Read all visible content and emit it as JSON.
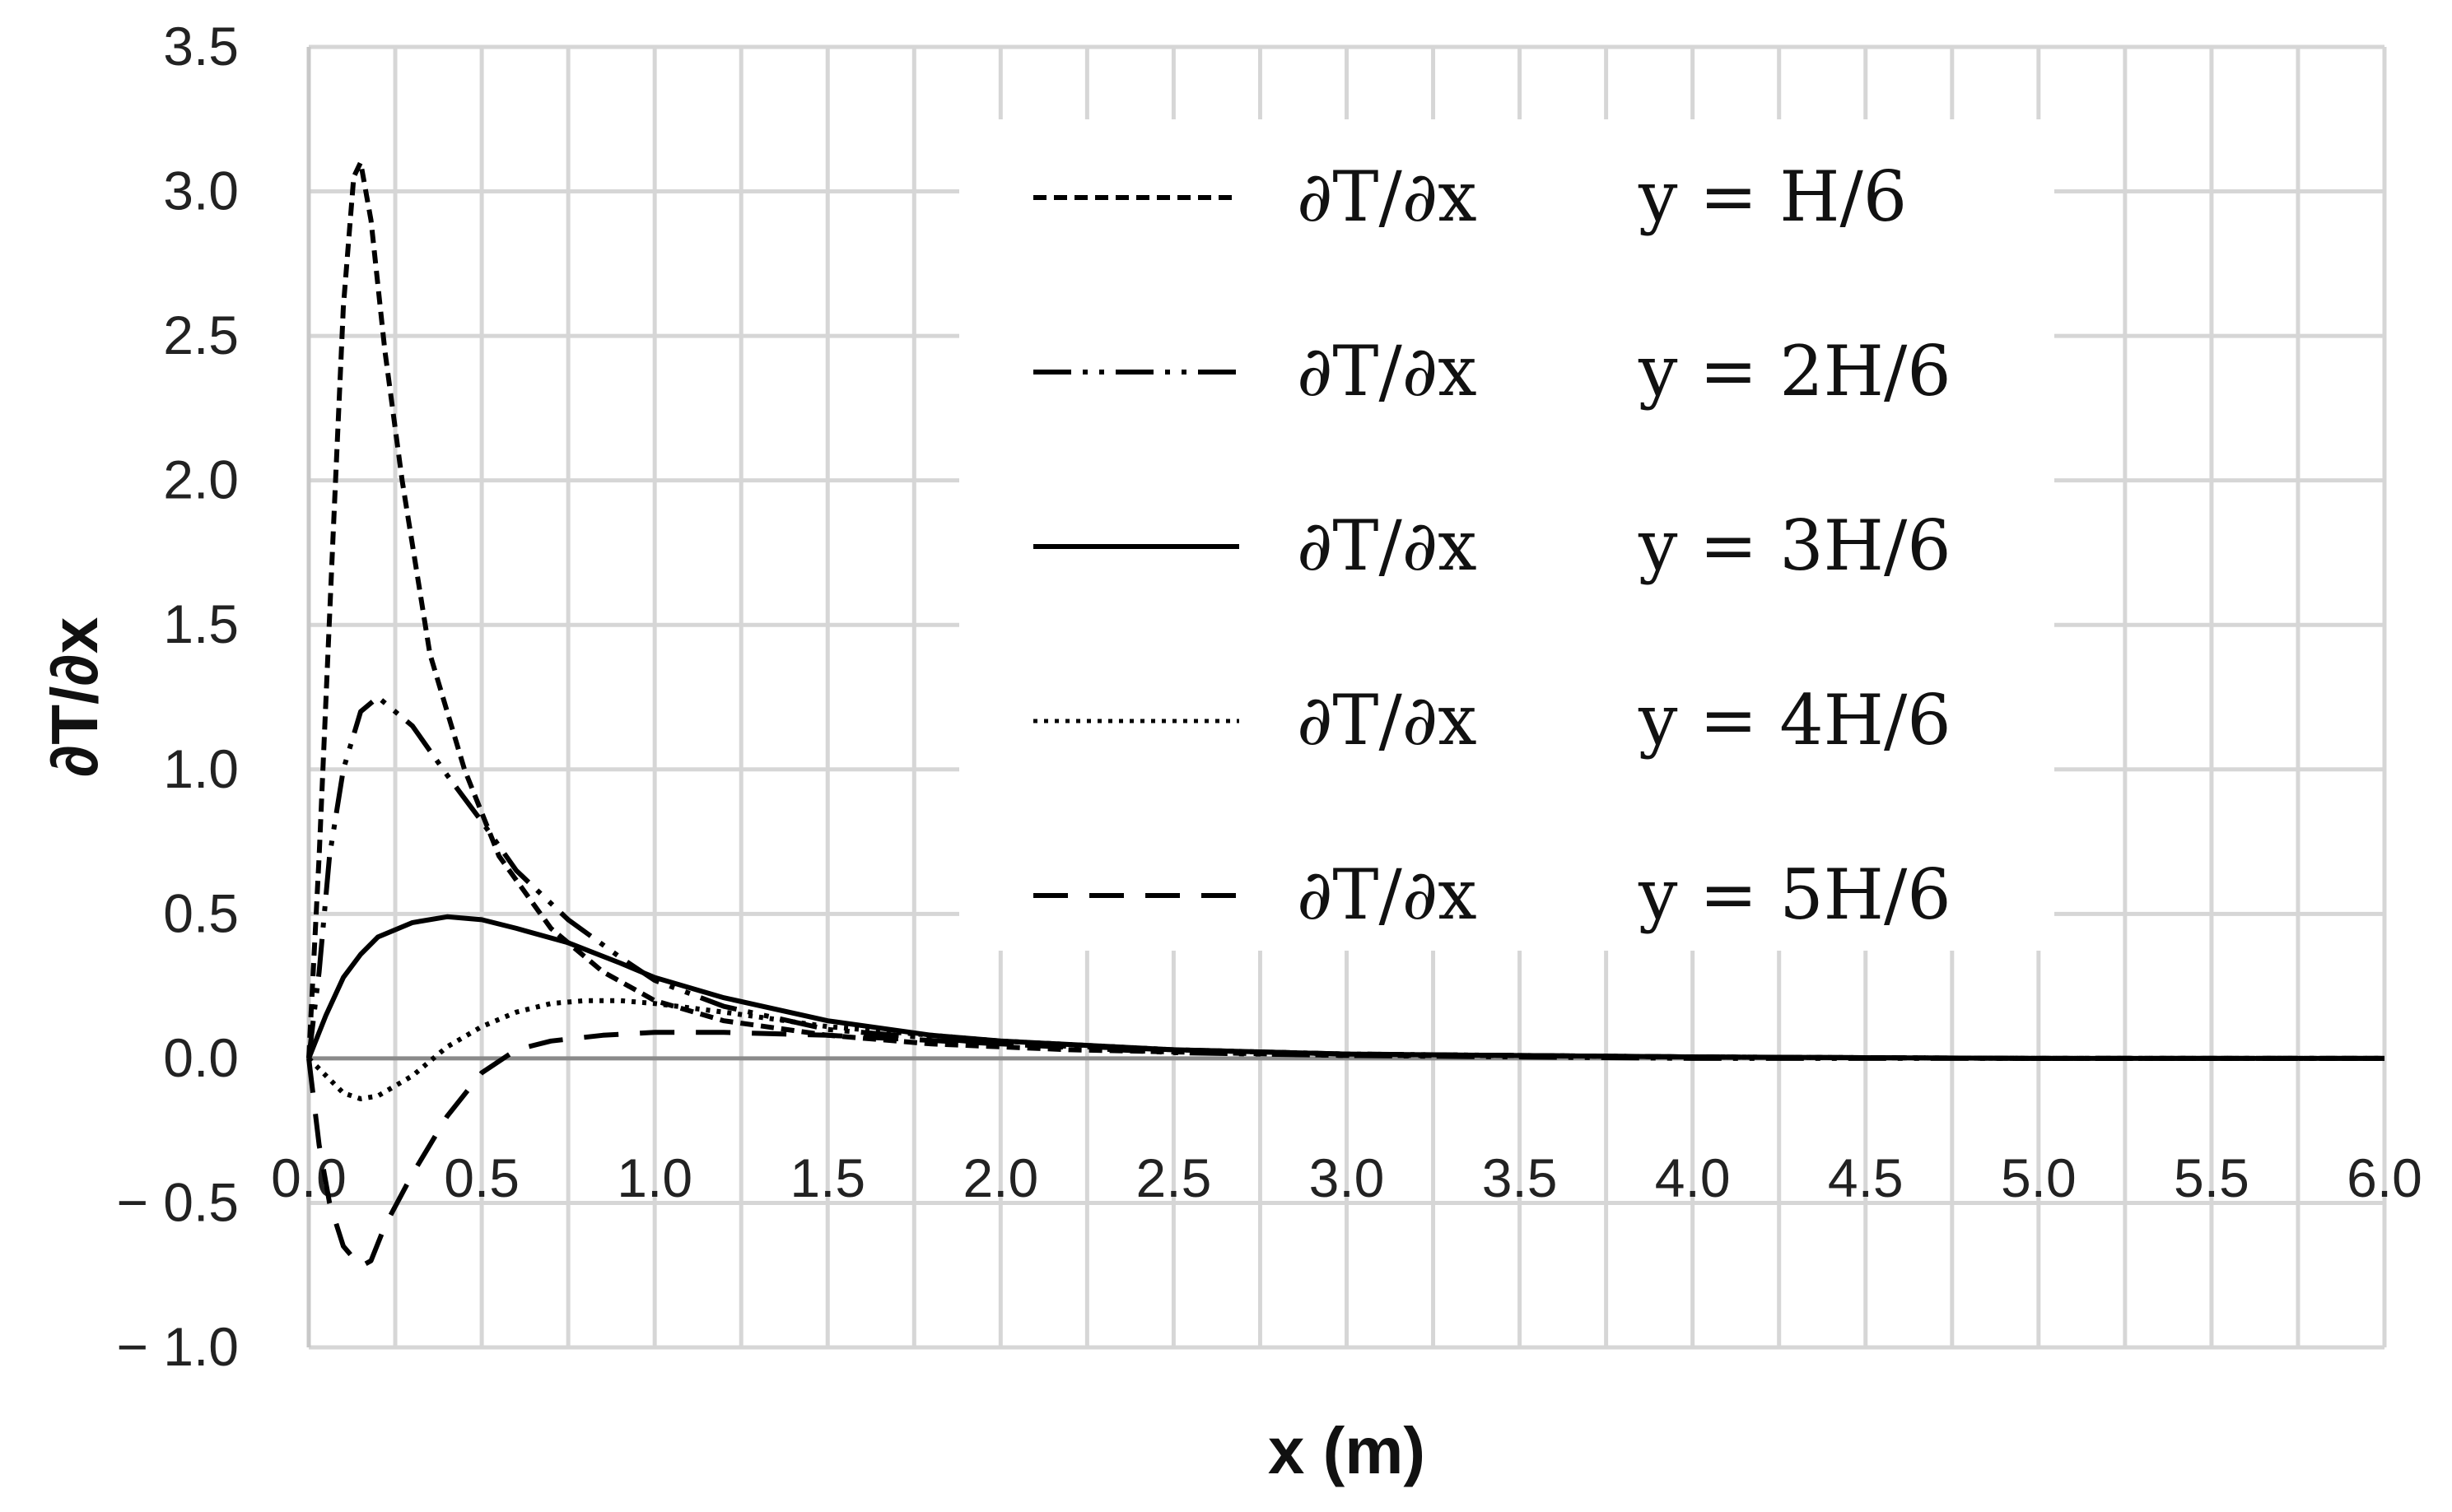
{
  "chart_data": {
    "type": "line",
    "title": "",
    "xlabel": "x (m)",
    "ylabel": "∂T/∂x",
    "xlim": [
      0,
      6
    ],
    "ylim": [
      -1,
      3.5
    ],
    "xticks": [
      "0.0",
      "0.5",
      "1.0",
      "1.5",
      "2.0",
      "2.5",
      "3.0",
      "3.5",
      "4.0",
      "4.5",
      "5.0",
      "5.5",
      "6.0"
    ],
    "yticks": [
      "3.5",
      "3.0",
      "2.5",
      "2.0",
      "1.5",
      "1.0",
      "0.5",
      "0.0",
      "− 0.5",
      "− 1.0"
    ],
    "grid": true,
    "legend_position": "top-right",
    "series": [
      {
        "name": "∂T/∂x",
        "condition": "y = H/6",
        "dash": "dense-dash",
        "x": [
          0.0,
          0.03,
          0.07,
          0.1,
          0.13,
          0.15,
          0.18,
          0.22,
          0.27,
          0.35,
          0.45,
          0.55,
          0.7,
          0.85,
          1.0,
          1.2,
          1.5,
          1.8,
          2.2,
          2.6,
          3.0,
          3.5,
          4.0,
          5.0,
          6.0
        ],
        "y": [
          0.0,
          0.7,
          1.8,
          2.6,
          3.05,
          3.1,
          2.9,
          2.45,
          2.0,
          1.4,
          1.0,
          0.7,
          0.45,
          0.3,
          0.2,
          0.13,
          0.08,
          0.05,
          0.03,
          0.02,
          0.01,
          0.01,
          0.005,
          0.0,
          0.0
        ]
      },
      {
        "name": "∂T/∂x",
        "condition": "y = 2H/6",
        "dash": "dash-dot-dot",
        "x": [
          0.0,
          0.03,
          0.06,
          0.1,
          0.15,
          0.2,
          0.25,
          0.3,
          0.4,
          0.5,
          0.6,
          0.75,
          0.9,
          1.0,
          1.2,
          1.5,
          2.0,
          2.5,
          3.0,
          4.0,
          5.0,
          6.0
        ],
        "y": [
          0.0,
          0.3,
          0.7,
          1.0,
          1.2,
          1.25,
          1.2,
          1.15,
          0.98,
          0.82,
          0.65,
          0.48,
          0.35,
          0.27,
          0.18,
          0.1,
          0.05,
          0.02,
          0.01,
          0.0,
          0.0,
          0.0
        ]
      },
      {
        "name": "∂T/∂x",
        "condition": "y = 3H/6",
        "dash": "solid",
        "x": [
          0.0,
          0.05,
          0.1,
          0.15,
          0.2,
          0.3,
          0.4,
          0.5,
          0.6,
          0.75,
          0.9,
          1.0,
          1.2,
          1.5,
          1.8,
          2.0,
          2.5,
          3.0,
          3.5,
          4.0,
          5.0,
          6.0
        ],
        "y": [
          0.0,
          0.15,
          0.28,
          0.36,
          0.42,
          0.47,
          0.49,
          0.48,
          0.45,
          0.4,
          0.33,
          0.28,
          0.21,
          0.13,
          0.08,
          0.06,
          0.03,
          0.015,
          0.01,
          0.005,
          0.0,
          0.0
        ]
      },
      {
        "name": "∂T/∂x",
        "condition": "y = 4H/6",
        "dash": "dotted",
        "x": [
          0.0,
          0.05,
          0.1,
          0.15,
          0.2,
          0.3,
          0.4,
          0.5,
          0.6,
          0.7,
          0.8,
          0.9,
          1.0,
          1.2,
          1.5,
          2.0,
          2.5,
          3.0,
          4.0,
          5.0,
          6.0
        ],
        "y": [
          0.0,
          -0.06,
          -0.12,
          -0.14,
          -0.13,
          -0.06,
          0.04,
          0.11,
          0.16,
          0.19,
          0.2,
          0.2,
          0.19,
          0.16,
          0.11,
          0.06,
          0.03,
          0.015,
          0.005,
          0.0,
          0.0
        ]
      },
      {
        "name": "∂T/∂x",
        "condition": "y = 5H/6",
        "dash": "long-dash",
        "x": [
          0.0,
          0.03,
          0.06,
          0.1,
          0.15,
          0.18,
          0.22,
          0.3,
          0.4,
          0.5,
          0.6,
          0.7,
          0.85,
          1.0,
          1.2,
          1.5,
          2.0,
          2.5,
          3.0,
          4.0,
          5.0,
          6.0
        ],
        "y": [
          0.0,
          -0.3,
          -0.5,
          -0.65,
          -0.72,
          -0.7,
          -0.58,
          -0.4,
          -0.2,
          -0.05,
          0.03,
          0.06,
          0.08,
          0.09,
          0.09,
          0.08,
          0.05,
          0.03,
          0.015,
          0.005,
          0.0,
          0.0
        ]
      }
    ]
  }
}
